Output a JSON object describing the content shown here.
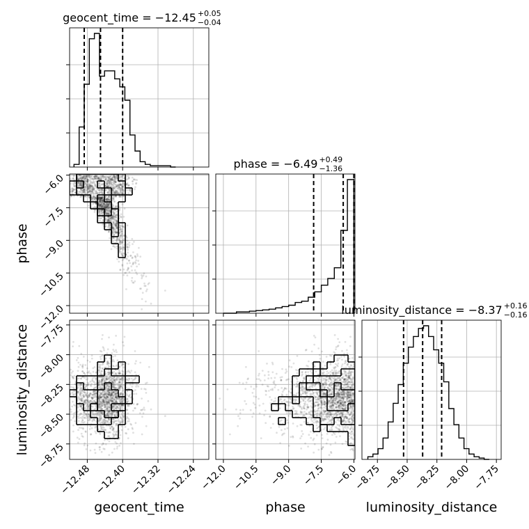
{
  "chart_data": {
    "type": "corner",
    "parameters": [
      "geocent_time",
      "phase",
      "luminosity_distance"
    ],
    "ranges": {
      "geocent_time": [
        -12.52,
        -12.205
      ],
      "phase": [
        -12.35,
        -5.95
      ],
      "luminosity_distance": [
        -8.88,
        -7.71
      ]
    },
    "ticks": {
      "geocent_time": [
        -12.48,
        -12.4,
        -12.32,
        -12.24
      ],
      "phase": [
        -12.0,
        -10.5,
        -9.0,
        -7.5,
        -6.0
      ],
      "luminosity_distance": [
        -8.75,
        -8.5,
        -8.25,
        -8.0,
        -7.75
      ]
    },
    "tick_labels": {
      "geocent_time": [
        "−12.48",
        "−12.40",
        "−12.32",
        "−12.24"
      ],
      "phase": [
        "−12.0",
        "−10.5",
        "−9.0",
        "−7.5",
        "−6.0"
      ],
      "luminosity_distance": [
        "−8.75",
        "−8.50",
        "−8.25",
        "−8.00",
        "−7.75"
      ]
    },
    "axis_labels": {
      "geocent_time": "geocent_time",
      "phase": "phase",
      "luminosity_distance": "luminosity_distance"
    },
    "titles": [
      {
        "param": "geocent_time",
        "text": "geocent_time = −12.45",
        "sup": "+0.05",
        "sub": "−0.04"
      },
      {
        "param": "phase",
        "text": "phase = −6.49",
        "sup": "+0.49",
        "sub": "−1.36"
      },
      {
        "param": "luminosity_distance",
        "text": "luminosity_distance = −8.37",
        "sup": "+0.16",
        "sub": "−0.16"
      }
    ],
    "quantiles": {
      "geocent_time": [
        -12.487,
        -12.45,
        -12.4
      ],
      "phase": [
        -7.85,
        -6.49,
        -6.0
      ],
      "luminosity_distance": [
        -8.53,
        -8.37,
        -8.21
      ]
    },
    "hist_1d": {
      "geocent_time": {
        "edges": [
          -12.51,
          -12.4985,
          -12.487,
          -12.4755,
          -12.464,
          -12.4525,
          -12.441,
          -12.4295,
          -12.418,
          -12.4065,
          -12.395,
          -12.3835,
          -12.372,
          -12.3605,
          -12.349,
          -12.3375,
          -12.326,
          -12.3145,
          -12.303,
          -12.2915,
          -12.28
        ],
        "counts": [
          0.02,
          0.3,
          0.62,
          0.96,
          1.0,
          0.68,
          0.72,
          0.72,
          0.66,
          0.6,
          0.5,
          0.24,
          0.12,
          0.04,
          0.02,
          0.01,
          0.01,
          0.01,
          0.01,
          0.0
        ]
      },
      "phase": {
        "edges": [
          -12.0,
          -11.7,
          -11.4,
          -11.1,
          -10.8,
          -10.5,
          -10.2,
          -9.9,
          -9.6,
          -9.3,
          -9.0,
          -8.7,
          -8.4,
          -8.1,
          -7.8,
          -7.5,
          -7.2,
          -6.9,
          -6.6,
          -6.3,
          -6.0
        ],
        "counts": [
          0.0,
          0.0,
          0.01,
          0.01,
          0.015,
          0.02,
          0.025,
          0.03,
          0.04,
          0.05,
          0.06,
          0.08,
          0.09,
          0.12,
          0.16,
          0.21,
          0.26,
          0.34,
          0.62,
          1.0
        ]
      },
      "luminosity_distance": {
        "edges": [
          -8.83,
          -8.7875,
          -8.745,
          -8.7025,
          -8.66,
          -8.6175,
          -8.575,
          -8.5325,
          -8.49,
          -8.4475,
          -8.405,
          -8.3625,
          -8.32,
          -8.2775,
          -8.235,
          -8.1925,
          -8.15,
          -8.1075,
          -8.065,
          -8.0225,
          -7.98,
          -7.9375,
          -7.895,
          -7.8525,
          -7.81
        ],
        "counts": [
          0.02,
          0.04,
          0.08,
          0.16,
          0.28,
          0.42,
          0.56,
          0.72,
          0.84,
          0.92,
          0.98,
          1.0,
          0.92,
          0.82,
          0.72,
          0.58,
          0.38,
          0.26,
          0.16,
          0.08,
          0.04,
          0.02,
          0.01,
          0.0
        ]
      }
    },
    "points_per_panel": 1800,
    "grid": true
  }
}
